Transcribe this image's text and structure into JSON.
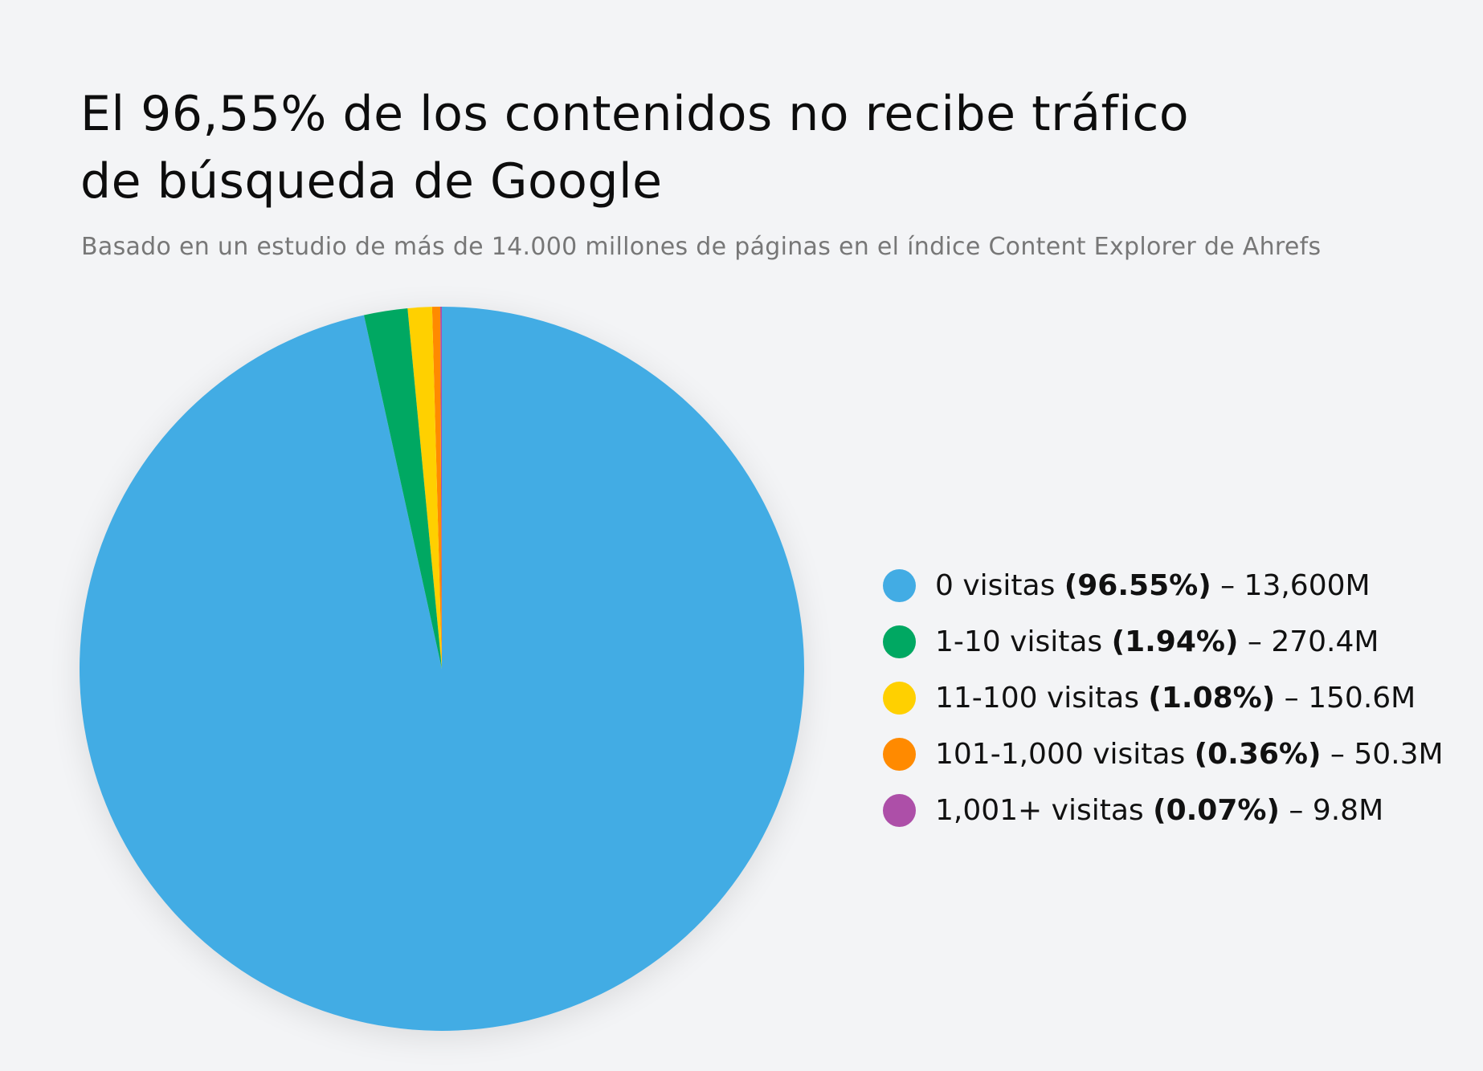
{
  "title_line1": "El 96,55% de los contenidos no recibe tráfico",
  "title_line2": "de búsqueda de Google",
  "subtitle": "Basado en un estudio de más de 14.000 millones de páginas en el índice Content Explorer de Ahrefs",
  "legend": [
    {
      "label": "0 visitas",
      "pct": "(96.55%)",
      "value": "– 13,600M",
      "color": "#42ace4"
    },
    {
      "label": "1-10 visitas",
      "pct": "(1.94%)",
      "value": "– 270.4M",
      "color": "#00a862"
    },
    {
      "label": "11-100 visitas",
      "pct": "(1.08%)",
      "value": "– 150.6M",
      "color": "#ffd000"
    },
    {
      "label": "101-1,000 visitas",
      "pct": "(0.36%)",
      "value": "– 50.3M",
      "color": "#ff8a00"
    },
    {
      "label": "1,001+ visitas",
      "pct": "(0.07%)",
      "value": "– 9.8M",
      "color": "#ad4fa8"
    }
  ],
  "chart_data": {
    "type": "pie",
    "title": "El 96,55% de los contenidos no recibe tráfico de búsqueda de Google",
    "subtitle": "Basado en un estudio de más de 14.000 millones de páginas en el índice Content Explorer de Ahrefs",
    "categories": [
      "0 visitas",
      "1-10 visitas",
      "11-100 visitas",
      "101-1,000 visitas",
      "1,001+ visitas"
    ],
    "values": [
      96.55,
      1.94,
      1.08,
      0.36,
      0.07
    ],
    "counts": [
      "13,600M",
      "270.4M",
      "150.6M",
      "50.3M",
      "9.8M"
    ],
    "colors": [
      "#42ace4",
      "#00a862",
      "#ffd000",
      "#ff8a00",
      "#ad4fa8"
    ],
    "legend_position": "right"
  }
}
